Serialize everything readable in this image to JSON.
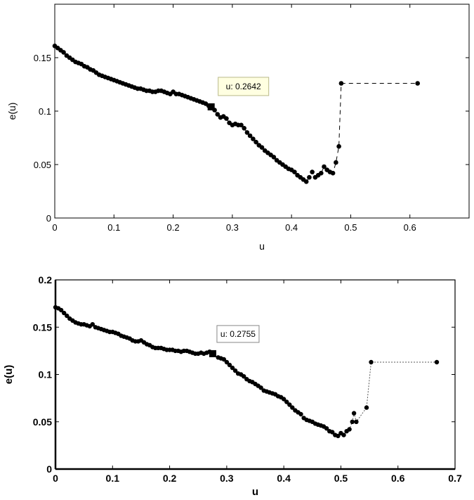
{
  "chart_data": [
    {
      "type": "scatter",
      "xlabel": "u",
      "ylabel": "e(u)",
      "xlim": [
        0,
        0.7
      ],
      "ylim": [
        0,
        0.2
      ],
      "xticks": [
        "0",
        "0.1",
        "0.2",
        "0.3",
        "0.4",
        "0.5",
        "0.6"
      ],
      "yticks": [
        "0",
        "0.05",
        "0.1",
        "0.15"
      ],
      "grid": false,
      "datatip": {
        "label": "u: 0.2642",
        "x": 0.2642,
        "y": 0.104
      },
      "x": [
        0,
        0.005,
        0.01,
        0.015,
        0.02,
        0.025,
        0.03,
        0.035,
        0.04,
        0.045,
        0.05,
        0.055,
        0.06,
        0.065,
        0.07,
        0.075,
        0.08,
        0.085,
        0.09,
        0.095,
        0.1,
        0.105,
        0.11,
        0.115,
        0.12,
        0.125,
        0.13,
        0.135,
        0.14,
        0.145,
        0.15,
        0.155,
        0.16,
        0.165,
        0.17,
        0.175,
        0.18,
        0.185,
        0.19,
        0.195,
        0.2,
        0.205,
        0.21,
        0.215,
        0.22,
        0.225,
        0.23,
        0.235,
        0.24,
        0.245,
        0.25,
        0.255,
        0.26,
        0.2642,
        0.27,
        0.275,
        0.28,
        0.285,
        0.29,
        0.295,
        0.3,
        0.305,
        0.31,
        0.315,
        0.32,
        0.325,
        0.33,
        0.335,
        0.34,
        0.345,
        0.35,
        0.355,
        0.36,
        0.365,
        0.37,
        0.375,
        0.38,
        0.385,
        0.39,
        0.395,
        0.4,
        0.405,
        0.41,
        0.415,
        0.42,
        0.425,
        0.43,
        0.435,
        0.44,
        0.445,
        0.45,
        0.455,
        0.46,
        0.465,
        0.47,
        0.475,
        0.48,
        0.484,
        0.613
      ],
      "y": [
        0.161,
        0.159,
        0.157,
        0.155,
        0.152,
        0.15,
        0.148,
        0.146,
        0.145,
        0.144,
        0.142,
        0.141,
        0.139,
        0.138,
        0.136,
        0.134,
        0.133,
        0.132,
        0.131,
        0.13,
        0.129,
        0.128,
        0.127,
        0.126,
        0.125,
        0.124,
        0.123,
        0.122,
        0.121,
        0.121,
        0.12,
        0.119,
        0.119,
        0.118,
        0.118,
        0.119,
        0.119,
        0.118,
        0.117,
        0.116,
        0.118,
        0.116,
        0.116,
        0.115,
        0.114,
        0.113,
        0.112,
        0.111,
        0.11,
        0.109,
        0.108,
        0.107,
        0.105,
        0.104,
        0.101,
        0.097,
        0.094,
        0.095,
        0.093,
        0.089,
        0.087,
        0.088,
        0.087,
        0.087,
        0.084,
        0.08,
        0.077,
        0.074,
        0.071,
        0.068,
        0.066,
        0.063,
        0.061,
        0.059,
        0.057,
        0.054,
        0.052,
        0.05,
        0.048,
        0.046,
        0.045,
        0.043,
        0.04,
        0.038,
        0.036,
        0.034,
        0.038,
        0.043,
        0.038,
        0.04,
        0.042,
        0.048,
        0.045,
        0.043,
        0.042,
        0.052,
        0.067,
        0.126,
        0.126
      ]
    },
    {
      "type": "scatter",
      "xlabel": "u",
      "ylabel": "e(u)",
      "xlim": [
        0,
        0.7
      ],
      "ylim": [
        0,
        0.2
      ],
      "xticks": [
        "0",
        "0.1",
        "0.2",
        "0.3",
        "0.4",
        "0.5",
        "0.6",
        "0.7"
      ],
      "yticks": [
        "0",
        "0.05",
        "0.1",
        "0.15",
        "0.2"
      ],
      "grid": false,
      "datatip": {
        "label": "u: 0.2755",
        "x": 0.2755,
        "y": 0.122
      },
      "x": [
        0,
        0.005,
        0.01,
        0.015,
        0.02,
        0.025,
        0.03,
        0.035,
        0.04,
        0.045,
        0.05,
        0.055,
        0.06,
        0.065,
        0.07,
        0.075,
        0.08,
        0.085,
        0.09,
        0.095,
        0.1,
        0.105,
        0.11,
        0.115,
        0.12,
        0.125,
        0.13,
        0.135,
        0.14,
        0.145,
        0.15,
        0.155,
        0.16,
        0.165,
        0.17,
        0.175,
        0.18,
        0.185,
        0.19,
        0.195,
        0.2,
        0.205,
        0.21,
        0.215,
        0.22,
        0.225,
        0.23,
        0.235,
        0.24,
        0.245,
        0.25,
        0.255,
        0.26,
        0.265,
        0.27,
        0.2755,
        0.285,
        0.29,
        0.295,
        0.3,
        0.305,
        0.31,
        0.315,
        0.32,
        0.325,
        0.33,
        0.335,
        0.34,
        0.345,
        0.35,
        0.355,
        0.36,
        0.365,
        0.37,
        0.375,
        0.38,
        0.385,
        0.39,
        0.395,
        0.4,
        0.405,
        0.41,
        0.415,
        0.42,
        0.425,
        0.43,
        0.435,
        0.44,
        0.445,
        0.45,
        0.455,
        0.46,
        0.465,
        0.47,
        0.475,
        0.48,
        0.485,
        0.49,
        0.495,
        0.5,
        0.505,
        0.51,
        0.515,
        0.52,
        0.523,
        0.527,
        0.545,
        0.553,
        0.668
      ],
      "y": [
        0.171,
        0.17,
        0.168,
        0.165,
        0.162,
        0.159,
        0.157,
        0.155,
        0.154,
        0.153,
        0.153,
        0.152,
        0.151,
        0.153,
        0.15,
        0.149,
        0.148,
        0.147,
        0.146,
        0.145,
        0.145,
        0.144,
        0.143,
        0.141,
        0.14,
        0.139,
        0.138,
        0.136,
        0.135,
        0.135,
        0.136,
        0.134,
        0.132,
        0.131,
        0.129,
        0.128,
        0.128,
        0.128,
        0.127,
        0.126,
        0.126,
        0.126,
        0.125,
        0.125,
        0.124,
        0.125,
        0.125,
        0.124,
        0.123,
        0.122,
        0.122,
        0.123,
        0.122,
        0.123,
        0.124,
        0.122,
        0.118,
        0.117,
        0.116,
        0.113,
        0.11,
        0.107,
        0.104,
        0.101,
        0.1,
        0.098,
        0.095,
        0.093,
        0.092,
        0.09,
        0.088,
        0.086,
        0.083,
        0.082,
        0.081,
        0.08,
        0.079,
        0.077,
        0.076,
        0.074,
        0.071,
        0.068,
        0.065,
        0.062,
        0.06,
        0.058,
        0.054,
        0.052,
        0.051,
        0.05,
        0.048,
        0.047,
        0.046,
        0.045,
        0.043,
        0.04,
        0.039,
        0.036,
        0.035,
        0.038,
        0.036,
        0.04,
        0.042,
        0.05,
        0.059,
        0.05,
        0.065,
        0.113,
        0.113
      ]
    }
  ]
}
